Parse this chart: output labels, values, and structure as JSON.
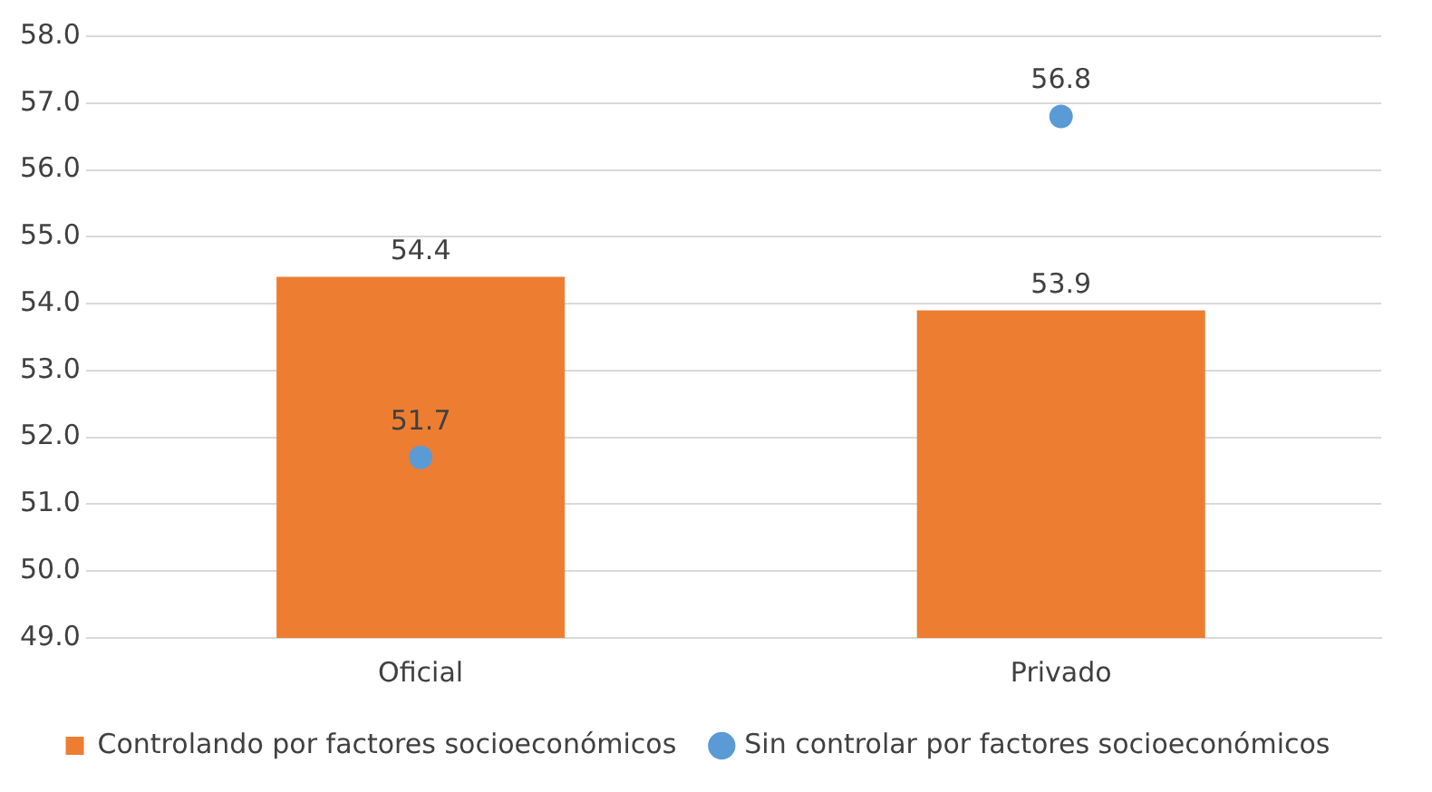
{
  "chart_data": {
    "type": "bar",
    "categories": [
      "Oficial",
      "Privado"
    ],
    "series": [
      {
        "name": "Controlando por factores socioeconómicos",
        "type": "bar",
        "color": "#ed7d31",
        "values": [
          54.4,
          53.9
        ]
      },
      {
        "name": "Sin controlar por factores socioeconómicos",
        "type": "scatter",
        "color": "#5b9bd5",
        "x": [
          "Oficial",
          "Privado"
        ],
        "values": [
          51.7,
          56.8
        ],
        "marker": "circle"
      }
    ],
    "ylim": [
      49,
      58
    ],
    "yticks": [
      {
        "value": 49,
        "label": "49.0"
      },
      {
        "value": 50,
        "label": "50.0"
      },
      {
        "value": 51,
        "label": "51.0"
      },
      {
        "value": 52,
        "label": "52.0"
      },
      {
        "value": 53,
        "label": "53.0"
      },
      {
        "value": 54,
        "label": "54.0"
      },
      {
        "value": 55,
        "label": "55.0"
      },
      {
        "value": 56,
        "label": "56.0"
      },
      {
        "value": 57,
        "label": "57.0"
      },
      {
        "value": 58,
        "label": "58.0"
      }
    ],
    "grid": "y",
    "legend": "bottom",
    "data_labels": true
  }
}
